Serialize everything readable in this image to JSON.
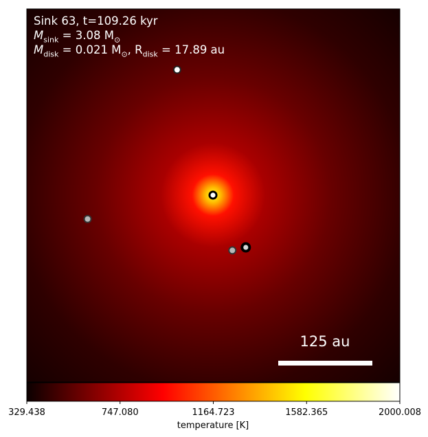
{
  "chart_data": {
    "type": "heatmap",
    "title": "",
    "annotations": {
      "line1": "Sink 63, t=109.26 kyr",
      "line2_prefix": "M",
      "line2_sub": "sink",
      "line2_rest": " = 3.08 M",
      "line2_sun": "⊙",
      "line3_prefix": "M",
      "line3_sub": "disk",
      "line3_mid": " = 0.021 M",
      "line3_sun": "⊙",
      "line3_sep": ", R",
      "line3_sub2": "disk",
      "line3_rest": " = 17.89 au"
    },
    "scale_bar": {
      "label": "125 au",
      "length_au": 125
    },
    "colorbar": {
      "label": "temperature [K]",
      "min": 329.438,
      "max": 2000.008,
      "tick_labels": [
        "329.438",
        "747.080",
        "1164.723",
        "1582.365",
        "2000.008"
      ],
      "tick_values": [
        329.438,
        747.08,
        1164.723,
        1582.365,
        2000.008
      ],
      "colormap": "hot"
    },
    "field": {
      "background_temperature_K": 420,
      "hotspot_temperature_K": 1650
    },
    "sinks": [
      {
        "id": "central",
        "x_au": 0,
        "y_au": 0,
        "style": "central"
      },
      {
        "id": "top",
        "x_au": -24,
        "y_au": 84,
        "style": "white"
      },
      {
        "id": "left",
        "x_au": -84,
        "y_au": -16,
        "style": "grey"
      },
      {
        "id": "bottom-mid",
        "x_au": 13,
        "y_au": -37,
        "style": "grey"
      },
      {
        "id": "bottom-right",
        "x_au": 22,
        "y_au": -35,
        "style": "dark"
      }
    ],
    "field_of_view_au": 250,
    "colors": {
      "text": "#ffffff",
      "scale_bar": "#ffffff",
      "frame": "#000000"
    }
  }
}
